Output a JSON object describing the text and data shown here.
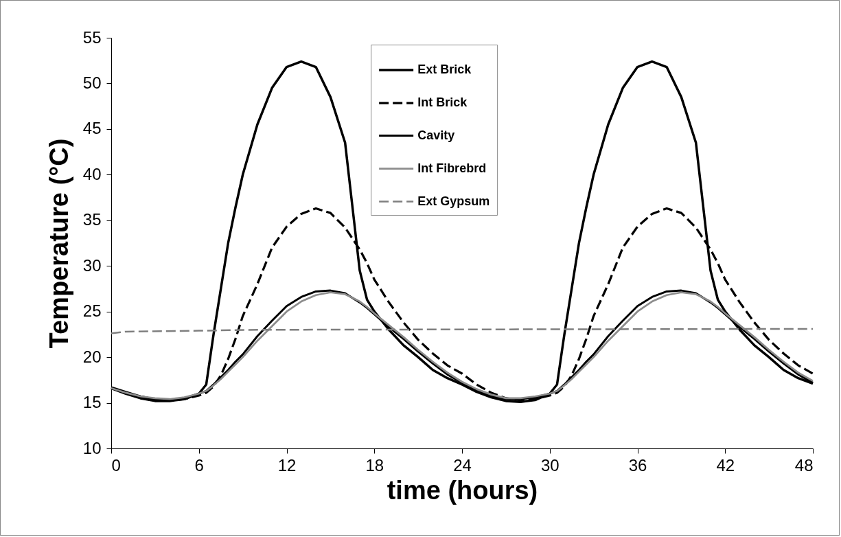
{
  "chart_data": {
    "type": "line",
    "xlabel": "time (hours)",
    "ylabel": "Temperature (°C)",
    "x": [
      0,
      1,
      2,
      3,
      4,
      5,
      6,
      6.5,
      7,
      7.5,
      8,
      8.5,
      9,
      10,
      11,
      12,
      13,
      14,
      15,
      16,
      17,
      17.5,
      18,
      19,
      20,
      21,
      22,
      23,
      24,
      25,
      26,
      27,
      28,
      29,
      30,
      30.5,
      31,
      31.5,
      32,
      32.5,
      33,
      34,
      35,
      36,
      37,
      38,
      39,
      40,
      41,
      41.5,
      42,
      43,
      44,
      45,
      46,
      47,
      48
    ],
    "series": [
      {
        "name": "Ext Brick",
        "color": "#000000",
        "line_style": "solid",
        "values": [
          16.6,
          16.0,
          15.5,
          15.2,
          15.2,
          15.4,
          16.0,
          17.0,
          22.5,
          27.5,
          32.5,
          36.4,
          40,
          45.5,
          49.5,
          51.8,
          52.4,
          51.8,
          48.5,
          43.5,
          29.5,
          26.3,
          25,
          23,
          21.3,
          20,
          18.6,
          17.7,
          17.0,
          16.2,
          15.6,
          15.2,
          15.1,
          15.3,
          16.0,
          17.0,
          22.5,
          27.5,
          32.5,
          36.4,
          40,
          45.5,
          49.5,
          51.8,
          52.4,
          51.8,
          48.5,
          43.5,
          29.5,
          26.3,
          25,
          23,
          21.3,
          20,
          18.6,
          17.7,
          17.1
        ]
      },
      {
        "name": "Int Brick",
        "color": "#000000",
        "line_style": "dashed",
        "values": [
          16.6,
          16.1,
          15.7,
          15.4,
          15.3,
          15.4,
          15.8,
          16.1,
          16.8,
          18,
          19.8,
          22,
          24.5,
          28,
          32,
          34.3,
          35.7,
          36.3,
          35.8,
          34.2,
          31.8,
          30.3,
          28.5,
          26,
          23.8,
          21.9,
          20.4,
          19.1,
          18.2,
          17.0,
          16.1,
          15.5,
          15.3,
          15.4,
          15.8,
          16.1,
          16.8,
          18,
          19.8,
          22,
          24.5,
          28,
          32,
          34.3,
          35.7,
          36.3,
          35.8,
          34.2,
          31.8,
          30.3,
          28.5,
          26,
          23.8,
          21.9,
          20.4,
          19.1,
          18.2
        ]
      },
      {
        "name": "Cavity",
        "color": "#000000",
        "line_style": "solid",
        "values": [
          16.7,
          16.2,
          15.7,
          15.4,
          15.3,
          15.5,
          16.0,
          16.3,
          17.0,
          17.8,
          18.6,
          19.5,
          20.3,
          22.3,
          24,
          25.6,
          26.6,
          27.2,
          27.3,
          27,
          26,
          25.4,
          24.7,
          23.3,
          22,
          20.6,
          19.3,
          18.1,
          17.2,
          16.4,
          15.8,
          15.4,
          15.4,
          15.6,
          16.0,
          16.3,
          17.0,
          17.8,
          18.6,
          19.5,
          20.3,
          22.3,
          24,
          25.6,
          26.6,
          27.2,
          27.3,
          27,
          26,
          25.4,
          24.7,
          23.3,
          22,
          20.6,
          19.3,
          18.1,
          17.2
        ]
      },
      {
        "name": "Int Fibrebrd",
        "color": "#8c8c8c",
        "line_style": "solid",
        "values": [
          16.6,
          16.1,
          15.7,
          15.5,
          15.4,
          15.6,
          16.0,
          16.3,
          16.9,
          17.6,
          18.4,
          19.2,
          20,
          21.8,
          23.4,
          25,
          26.1,
          26.8,
          27.1,
          26.9,
          26.1,
          25.5,
          24.8,
          23.5,
          22.2,
          20.8,
          19.5,
          18.3,
          17.3,
          16.5,
          15.9,
          15.5,
          15.5,
          15.7,
          16.0,
          16.3,
          16.9,
          17.6,
          18.4,
          19.2,
          20,
          21.8,
          23.4,
          25,
          26.1,
          26.8,
          27.1,
          26.9,
          26.1,
          25.5,
          24.8,
          23.5,
          22.2,
          20.8,
          19.5,
          18.3,
          17.4
        ]
      },
      {
        "name": "Ext Gypsum",
        "color": "#7f7f7f",
        "line_style": "dashed",
        "x": [
          0,
          1,
          6,
          10,
          48
        ],
        "values": [
          22.6,
          22.8,
          22.9,
          23.0,
          23.1
        ]
      }
    ],
    "xlim": [
      0,
      48
    ],
    "xticks": [
      0,
      6,
      12,
      18,
      24,
      30,
      36,
      42,
      48
    ],
    "ylim": [
      10,
      55
    ],
    "yticks": [
      10,
      15,
      20,
      25,
      30,
      35,
      40,
      45,
      50,
      55
    ],
    "grid": false,
    "legend": "top"
  }
}
